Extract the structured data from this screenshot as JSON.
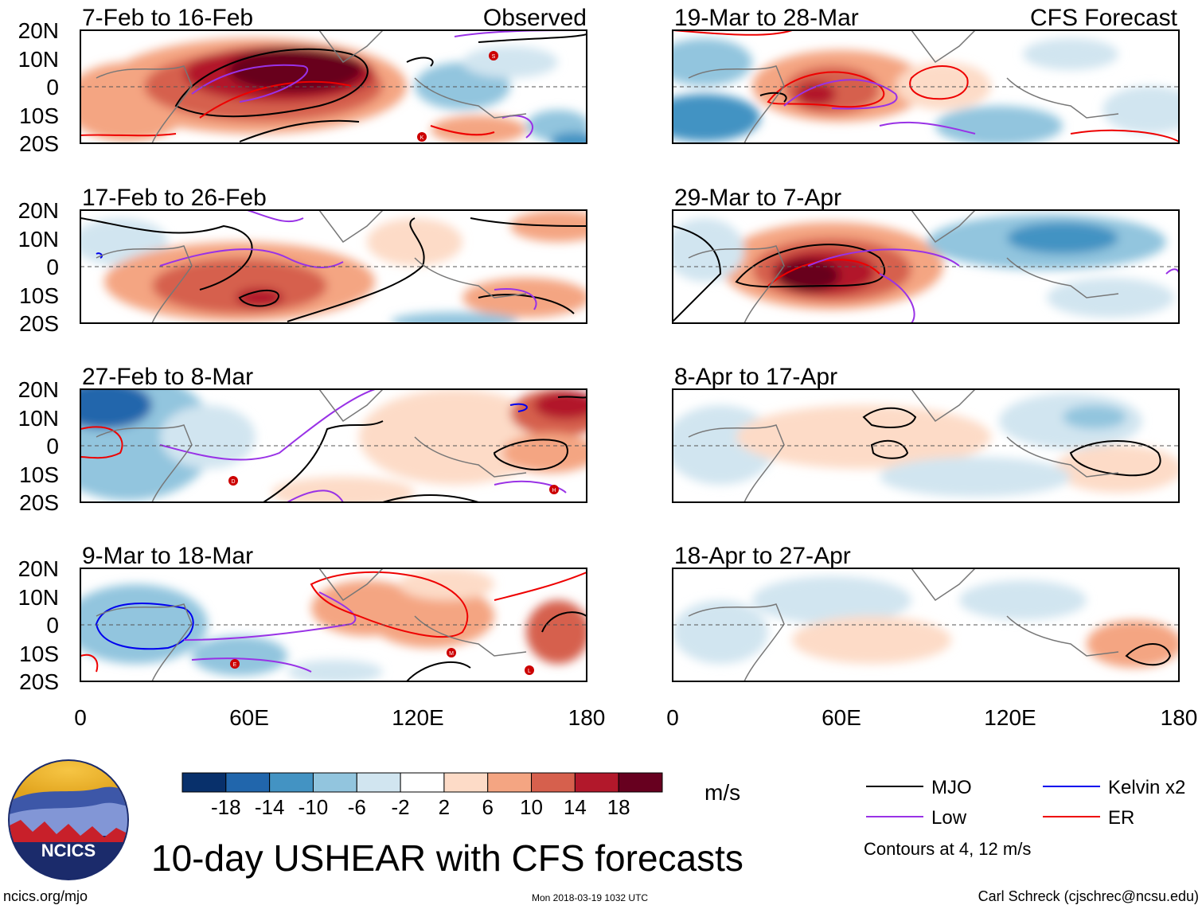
{
  "figure": {
    "title": "10-day USHEAR with CFS forecasts",
    "left_column_label": "Observed",
    "right_column_label": "CFS Forecast",
    "units": "m/s",
    "contour_note": "Contours at 4, 12 m/s",
    "website": "ncics.org/mjo",
    "timestamp": "Mon 2018-03-19 1032 UTC",
    "author": "Carl Schreck (cjschrec@ncsu.edu)",
    "logo_text": "NCICS"
  },
  "axes": {
    "lat_labels": [
      "20N",
      "10N",
      "0",
      "10S",
      "20S"
    ],
    "lon_labels": [
      "0",
      "60E",
      "120E",
      "180"
    ]
  },
  "panels": [
    {
      "id": "p1",
      "column": "observed",
      "title": "7-Feb to 16-Feb",
      "corner_label": "Observed"
    },
    {
      "id": "p2",
      "column": "observed",
      "title": "17-Feb to 26-Feb"
    },
    {
      "id": "p3",
      "column": "observed",
      "title": "27-Feb to 8-Mar"
    },
    {
      "id": "p4",
      "column": "observed",
      "title": "9-Mar to 18-Mar"
    },
    {
      "id": "p5",
      "column": "forecast",
      "title": "19-Mar to 28-Mar",
      "corner_label": "CFS Forecast"
    },
    {
      "id": "p6",
      "column": "forecast",
      "title": "29-Mar to 7-Apr"
    },
    {
      "id": "p7",
      "column": "forecast",
      "title": "8-Apr to 17-Apr"
    },
    {
      "id": "p8",
      "column": "forecast",
      "title": "18-Apr to 27-Apr"
    }
  ],
  "colorbar": {
    "tick_labels": [
      "-18",
      "-14",
      "-10",
      "-6",
      "-2",
      "2",
      "6",
      "10",
      "14",
      "18"
    ],
    "colors": [
      "#08306b",
      "#2166ac",
      "#4393c3",
      "#92c5de",
      "#d1e5f0",
      "#ffffff",
      "#fddbc7",
      "#f4a582",
      "#d6604d",
      "#b2182b",
      "#67001f"
    ]
  },
  "legend": [
    {
      "label": "MJO",
      "color": "#000000"
    },
    {
      "label": "Kelvin x2",
      "color": "#0000ee"
    },
    {
      "label": "Low",
      "color": "#9932e6"
    },
    {
      "label": "ER",
      "color": "#ee0000"
    }
  ],
  "cyclone_labels": {
    "p1": [
      "S",
      "K"
    ],
    "p3": [
      "D",
      "H"
    ],
    "p4": [
      "M",
      "E",
      "L"
    ]
  }
}
